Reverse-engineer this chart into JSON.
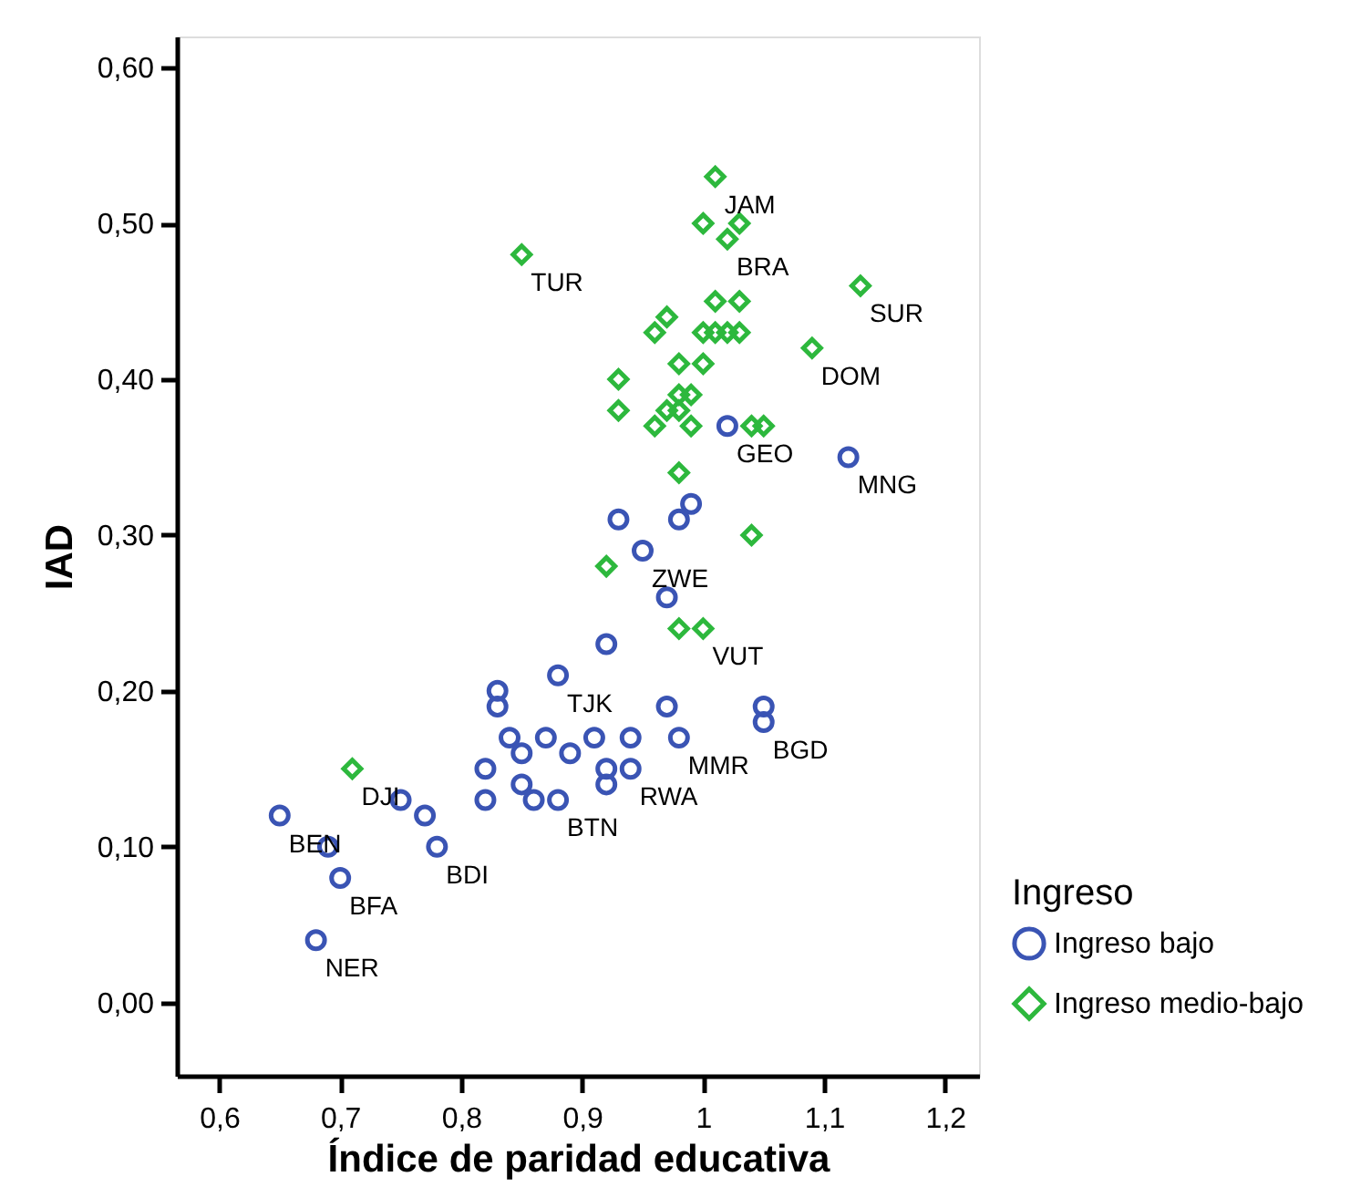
{
  "chart_data": {
    "type": "scatter",
    "xlabel": "Índice de paridad educativa",
    "ylabel": "IAD",
    "legend_title": "Ingreso",
    "legend": "right",
    "grid": false,
    "xlim": [
      0.565,
      1.228
    ],
    "ylim": [
      -0.047,
      0.62
    ],
    "xticks": [
      {
        "value": 0.6,
        "label": "0,6"
      },
      {
        "value": 0.7,
        "label": "0,7"
      },
      {
        "value": 0.8,
        "label": "0,8"
      },
      {
        "value": 0.9,
        "label": "0,9"
      },
      1,
      {
        "value": 1.1,
        "label": "1,1"
      },
      {
        "value": 1.2,
        "label": "1,2"
      }
    ],
    "yticks": [
      {
        "value": 0,
        "label": "0,00"
      },
      {
        "value": 0.1,
        "label": "0,10"
      },
      {
        "value": 0.2,
        "label": "0,20"
      },
      {
        "value": 0.3,
        "label": "0,30"
      },
      {
        "value": 0.4,
        "label": "0,40"
      },
      {
        "value": 0.5,
        "label": "0,50"
      },
      {
        "value": 0.6,
        "label": "0,60"
      }
    ],
    "series": [
      {
        "name": "Ingreso bajo",
        "color": "#3a54b4",
        "marker": "circle",
        "x": [
          1.02,
          1.12,
          0.99,
          0.93,
          0.98,
          0.95,
          0.97,
          0.92,
          0.88,
          0.83,
          0.83,
          0.97,
          1.05,
          1.05,
          0.84,
          0.87,
          0.91,
          0.94,
          0.98,
          0.85,
          0.89,
          0.82,
          0.92,
          0.94,
          0.92,
          0.85,
          0.82,
          0.86,
          0.88,
          0.75,
          0.77,
          0.65,
          0.69,
          0.78,
          0.7,
          0.68
        ],
        "values": [
          0.37,
          0.35,
          0.32,
          0.31,
          0.31,
          0.29,
          0.26,
          0.23,
          0.21,
          0.2,
          0.19,
          0.19,
          0.19,
          0.18,
          0.17,
          0.17,
          0.17,
          0.17,
          0.17,
          0.16,
          0.16,
          0.15,
          0.15,
          0.15,
          0.14,
          0.14,
          0.13,
          0.13,
          0.13,
          0.13,
          0.12,
          0.12,
          0.1,
          0.1,
          0.08,
          0.04
        ]
      },
      {
        "name": "Ingreso medio-bajo",
        "color": "#2db83d",
        "marker": "diamond",
        "x": [
          1.01,
          1.0,
          1.03,
          1.02,
          0.85,
          1.13,
          1.01,
          1.03,
          0.97,
          0.96,
          1.0,
          1.01,
          1.02,
          1.03,
          1.09,
          0.98,
          1.0,
          0.93,
          0.98,
          0.99,
          0.93,
          0.97,
          0.98,
          0.96,
          0.99,
          1.04,
          1.05,
          0.98,
          1.04,
          0.92,
          0.98,
          1.0,
          0.71
        ],
        "values": [
          0.53,
          0.5,
          0.5,
          0.49,
          0.48,
          0.46,
          0.45,
          0.45,
          0.44,
          0.43,
          0.43,
          0.43,
          0.43,
          0.43,
          0.42,
          0.41,
          0.41,
          0.4,
          0.39,
          0.39,
          0.38,
          0.38,
          0.38,
          0.37,
          0.37,
          0.37,
          0.37,
          0.34,
          0.3,
          0.28,
          0.24,
          0.24,
          0.15
        ]
      }
    ],
    "annotations": [
      {
        "text": "JAM",
        "x": 1.01,
        "y": 0.53
      },
      {
        "text": "BRA",
        "x": 1.02,
        "y": 0.49
      },
      {
        "text": "TUR",
        "x": 0.85,
        "y": 0.48
      },
      {
        "text": "SUR",
        "x": 1.13,
        "y": 0.46
      },
      {
        "text": "DOM",
        "x": 1.09,
        "y": 0.42
      },
      {
        "text": "GEO",
        "x": 1.02,
        "y": 0.37
      },
      {
        "text": "MNG",
        "x": 1.12,
        "y": 0.35
      },
      {
        "text": "ZWE",
        "x": 0.95,
        "y": 0.29
      },
      {
        "text": "VUT",
        "x": 1.0,
        "y": 0.24
      },
      {
        "text": "TJK",
        "x": 0.88,
        "y": 0.21
      },
      {
        "text": "BGD",
        "x": 1.05,
        "y": 0.18
      },
      {
        "text": "MMR",
        "x": 0.98,
        "y": 0.17
      },
      {
        "text": "RWA",
        "x": 0.94,
        "y": 0.15
      },
      {
        "text": "DJI",
        "x": 0.71,
        "y": 0.15
      },
      {
        "text": "BTN",
        "x": 0.88,
        "y": 0.13
      },
      {
        "text": "BEN",
        "x": 0.65,
        "y": 0.12
      },
      {
        "text": "BDI",
        "x": 0.78,
        "y": 0.1
      },
      {
        "text": "BFA",
        "x": 0.7,
        "y": 0.08
      },
      {
        "text": "NER",
        "x": 0.68,
        "y": 0.04
      }
    ]
  }
}
